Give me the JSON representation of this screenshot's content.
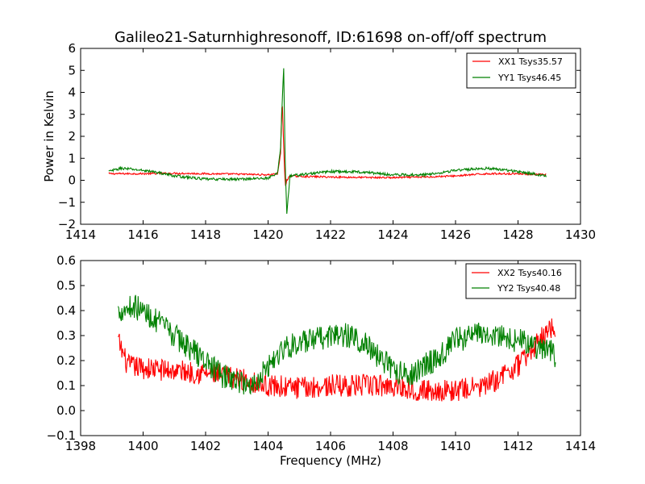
{
  "chart_data": [
    {
      "type": "line",
      "title": "Galileo21-Saturnhighresonoff, ID:61698 on-off/off spectrum",
      "xlabel": "",
      "ylabel": "Power in Kelvin",
      "xlim": [
        1414,
        1430
      ],
      "ylim": [
        -2,
        6
      ],
      "xticks": [
        1414,
        1416,
        1418,
        1420,
        1422,
        1424,
        1426,
        1428,
        1430
      ],
      "yticks": [
        -2,
        -1,
        0,
        1,
        2,
        3,
        4,
        5,
        6
      ],
      "xtick_labels": [
        "1414",
        "1416",
        "1418",
        "1420",
        "1422",
        "1424",
        "1426",
        "1428",
        "1430"
      ],
      "ytick_labels": [
        "−2",
        "−1",
        "0",
        "1",
        "2",
        "3",
        "4",
        "5",
        "6"
      ],
      "grid": false,
      "legend": "top-right",
      "series": [
        {
          "name": "XX1 Tsys35.57",
          "color": "#ff0000",
          "noise": 0.04,
          "x": [
            1414.9,
            1416,
            1417,
            1418,
            1419,
            1420,
            1420.3,
            1420.4,
            1420.45,
            1420.5,
            1420.55,
            1420.6,
            1420.7,
            1421,
            1422,
            1423,
            1424,
            1425,
            1426,
            1427,
            1428,
            1428.9
          ],
          "y": [
            0.3,
            0.3,
            0.32,
            0.3,
            0.28,
            0.25,
            0.3,
            1.2,
            3.8,
            1.5,
            -0.3,
            0.0,
            0.2,
            0.18,
            0.15,
            0.13,
            0.12,
            0.15,
            0.2,
            0.3,
            0.3,
            0.25
          ]
        },
        {
          "name": "YY1 Tsys46.45",
          "color": "#008000",
          "noise": 0.06,
          "x": [
            1414.9,
            1415.3,
            1416,
            1416.5,
            1417,
            1418,
            1419,
            1420,
            1420.3,
            1420.4,
            1420.45,
            1420.5,
            1420.55,
            1420.6,
            1420.7,
            1421,
            1422,
            1423,
            1424,
            1425,
            1426,
            1427,
            1428,
            1428.9
          ],
          "y": [
            0.4,
            0.55,
            0.45,
            0.35,
            0.2,
            0.05,
            0.05,
            0.1,
            0.3,
            1.5,
            3.5,
            5.1,
            0.5,
            -1.5,
            0.2,
            0.25,
            0.4,
            0.38,
            0.25,
            0.25,
            0.45,
            0.55,
            0.4,
            0.2
          ]
        }
      ]
    },
    {
      "type": "line",
      "title": "",
      "xlabel": "Frequency (MHz)",
      "ylabel": "",
      "xlim": [
        1398,
        1414
      ],
      "ylim": [
        -0.1,
        0.6
      ],
      "xticks": [
        1398,
        1400,
        1402,
        1404,
        1406,
        1408,
        1410,
        1412,
        1414
      ],
      "yticks": [
        -0.1,
        0.0,
        0.1,
        0.2,
        0.3,
        0.4,
        0.5,
        0.6
      ],
      "xtick_labels": [
        "1398",
        "1400",
        "1402",
        "1404",
        "1406",
        "1408",
        "1410",
        "1412",
        "1414"
      ],
      "ytick_labels": [
        "−0.1",
        "0.0",
        "0.1",
        "0.2",
        "0.3",
        "0.4",
        "0.5",
        "0.6"
      ],
      "grid": false,
      "legend": "top-right",
      "series": [
        {
          "name": "XX2 Tsys40.16",
          "color": "#ff0000",
          "noise": 0.045,
          "x": [
            1399.2,
            1399.5,
            1400,
            1401,
            1402,
            1403,
            1404,
            1405,
            1406,
            1407,
            1408,
            1409,
            1410,
            1411,
            1412,
            1412.5,
            1413,
            1413.2
          ],
          "y": [
            0.28,
            0.18,
            0.17,
            0.16,
            0.15,
            0.13,
            0.1,
            0.09,
            0.1,
            0.1,
            0.1,
            0.08,
            0.08,
            0.1,
            0.18,
            0.25,
            0.33,
            0.33
          ]
        },
        {
          "name": "YY2 Tsys40.48",
          "color": "#008000",
          "noise": 0.05,
          "x": [
            1399.2,
            1399.7,
            1400.2,
            1401,
            1402,
            1402.5,
            1403,
            1403.5,
            1404,
            1404.5,
            1405,
            1405.5,
            1406,
            1406.5,
            1407,
            1407.5,
            1408,
            1408.5,
            1409,
            1409.5,
            1410,
            1410.5,
            1411,
            1411.5,
            1412,
            1412.5,
            1413,
            1413.2
          ],
          "y": [
            0.4,
            0.42,
            0.38,
            0.3,
            0.2,
            0.14,
            0.12,
            0.1,
            0.18,
            0.25,
            0.27,
            0.28,
            0.3,
            0.3,
            0.28,
            0.22,
            0.16,
            0.14,
            0.18,
            0.22,
            0.28,
            0.3,
            0.31,
            0.3,
            0.28,
            0.26,
            0.24,
            0.22
          ]
        }
      ]
    }
  ]
}
